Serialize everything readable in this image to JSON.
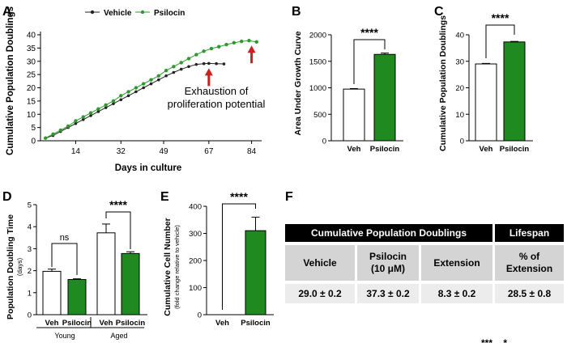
{
  "panels": {
    "A": {
      "letter": "A"
    },
    "B": {
      "letter": "B"
    },
    "C": {
      "letter": "C"
    },
    "D": {
      "letter": "D"
    },
    "E": {
      "letter": "E"
    },
    "F": {
      "letter": "F"
    }
  },
  "colors": {
    "vehicle": "#222222",
    "psilocin": "#2d9a2d",
    "bar_green": "#1f8a1f",
    "arrow": "#cc1f1f"
  },
  "chart_data": [
    {
      "panel": "A",
      "type": "line",
      "xlabel": "Days in culture",
      "ylabel": "Cumulative Population Doublings",
      "xticks": [
        14,
        32,
        49,
        67,
        84
      ],
      "yticks": [
        0,
        5,
        10,
        15,
        20,
        25,
        30,
        35,
        40
      ],
      "xlim": [
        0,
        88
      ],
      "ylim": [
        0,
        40
      ],
      "legend_position": "top",
      "series": [
        {
          "name": "Vehicle",
          "color": "#222222",
          "x": [
            2,
            5,
            8,
            11,
            14,
            17,
            20,
            23,
            26,
            29,
            32,
            35,
            38,
            41,
            44,
            47,
            50,
            53,
            56,
            59,
            62,
            65,
            67,
            70,
            73
          ],
          "y": [
            1,
            2,
            3.5,
            5,
            6.5,
            8,
            9.5,
            11,
            12.5,
            14,
            15.5,
            17,
            18.5,
            20,
            21.5,
            23,
            24.5,
            25.8,
            27,
            28,
            28.8,
            29.1,
            29.2,
            29.1,
            29
          ]
        },
        {
          "name": "Psilocin",
          "color": "#2d9a2d",
          "x": [
            2,
            5,
            8,
            11,
            14,
            17,
            20,
            23,
            26,
            29,
            32,
            35,
            38,
            41,
            44,
            47,
            50,
            53,
            56,
            59,
            62,
            65,
            68,
            71,
            74,
            77,
            80,
            83,
            86
          ],
          "y": [
            1,
            2.5,
            4,
            5.5,
            7.5,
            9,
            10.5,
            12,
            13.5,
            15,
            17,
            18.5,
            20,
            21.5,
            23,
            24.5,
            26.5,
            28,
            29.5,
            31,
            32.5,
            33.8,
            34.8,
            35.5,
            36.3,
            37,
            37.5,
            37.8,
            37.3
          ]
        }
      ],
      "annotation": "Exhaustion of proliferation potential",
      "arrows_at_x": [
        67,
        84
      ]
    },
    {
      "panel": "B",
      "type": "bar",
      "ylabel": "Area Under Growth Curve",
      "categories": [
        "Veh",
        "Psilocin"
      ],
      "values": [
        975,
        1630
      ],
      "errors": [
        10,
        25
      ],
      "yticks": [
        0,
        500,
        1000,
        1500,
        2000
      ],
      "ylim": [
        0,
        2000
      ],
      "significance": "****"
    },
    {
      "panel": "C",
      "type": "bar",
      "ylabel": "Cumulative Population Doublings",
      "categories": [
        "Veh",
        "Psilocin"
      ],
      "values": [
        29.0,
        37.3
      ],
      "errors": [
        0.2,
        0.2
      ],
      "yticks": [
        0,
        10,
        20,
        30,
        40
      ],
      "ylim": [
        0,
        40
      ],
      "significance": "****"
    },
    {
      "panel": "D",
      "type": "bar",
      "ylabel": "Population Doubling Time",
      "ylabel_unit": "(days)",
      "categories": [
        "Veh",
        "Psilocin",
        "Veh",
        "Psilocin"
      ],
      "groups": [
        "Young",
        "Aged"
      ],
      "values": [
        1.97,
        1.6,
        3.72,
        2.78
      ],
      "errors": [
        0.1,
        0.03,
        0.4,
        0.08
      ],
      "yticks": [
        0,
        1,
        2,
        3,
        4,
        5
      ],
      "ylim": [
        0,
        5
      ],
      "significance": [
        "ns",
        "****"
      ]
    },
    {
      "panel": "E",
      "type": "bar",
      "ylabel": "Cumulative Cell Number",
      "ylabel_unit": "(fold change relative to vehicle)",
      "categories": [
        "Veh",
        "Psilocin"
      ],
      "values": [
        0,
        310
      ],
      "errors": [
        0,
        50
      ],
      "yticks": [
        0,
        100,
        200,
        300,
        400
      ],
      "ylim": [
        0,
        400
      ],
      "significance": "****"
    },
    {
      "panel": "F",
      "type": "table",
      "group_headers": [
        "Cumulative Population Doublings",
        "Lifespan"
      ],
      "columns": [
        "Vehicle",
        "Psilocin (10 μM)",
        "Extension",
        "% of Extension"
      ],
      "rows": [
        [
          "29.0 ± 0.2",
          "37.3 ± 0.2",
          "8.3 ± 0.2",
          "28.5 ± 0.8"
        ]
      ]
    }
  ],
  "bottom_fragment": "***    *"
}
